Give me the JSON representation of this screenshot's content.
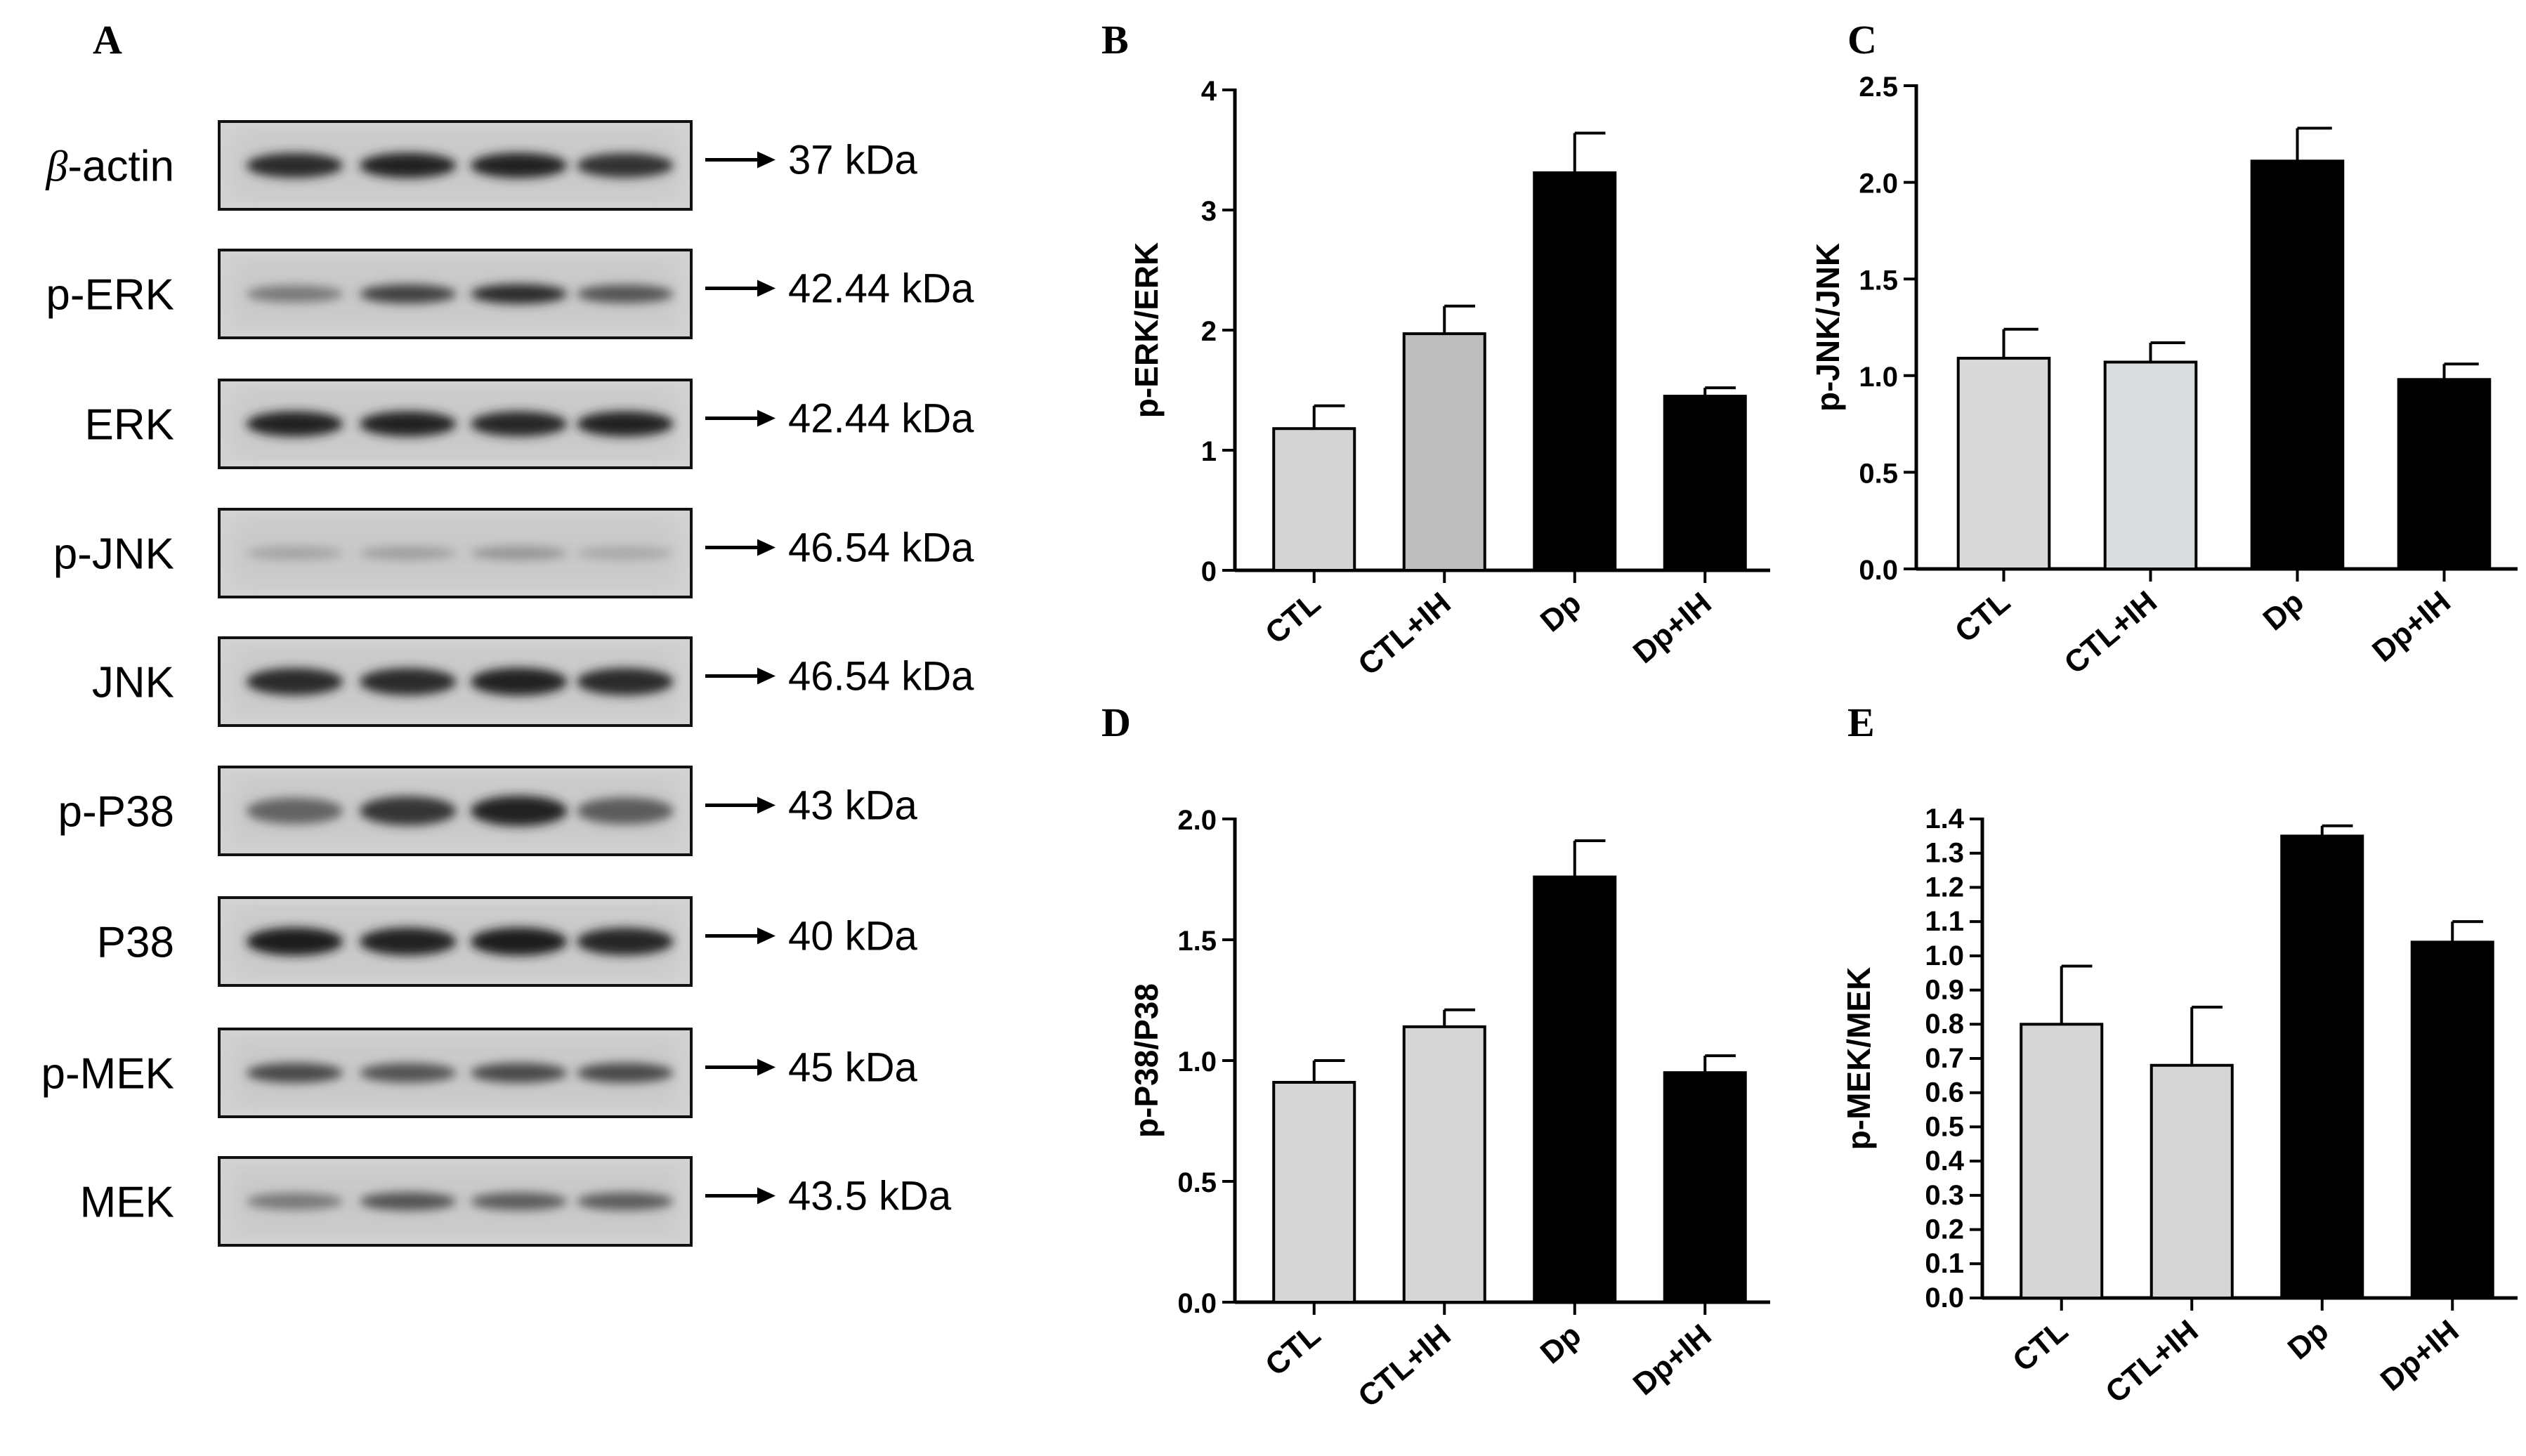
{
  "panel_a": {
    "letter": "A",
    "blots": [
      {
        "label": "β-actin",
        "label_greek": "β",
        "label_rest": "-actin",
        "kda": "37 kDa",
        "bands": [
          0.85,
          0.9,
          0.9,
          0.82
        ],
        "band_height": 1.0
      },
      {
        "label": "p-ERK",
        "kda": "42.44 kDa",
        "bands": [
          0.45,
          0.75,
          0.85,
          0.65
        ],
        "band_height": 0.8
      },
      {
        "label": "ERK",
        "kda": "42.44 kDa",
        "bands": [
          0.9,
          0.9,
          0.88,
          0.9
        ],
        "band_height": 1.0
      },
      {
        "label": "p-JNK",
        "kda": "46.54 kDa",
        "bands": [
          0.22,
          0.25,
          0.3,
          0.2
        ],
        "band_height": 0.7
      },
      {
        "label": "JNK",
        "kda": "46.54 kDa",
        "bands": [
          0.85,
          0.85,
          0.9,
          0.85
        ],
        "band_height": 1.1
      },
      {
        "label": "p-P38",
        "kda": "43 kDa",
        "bands": [
          0.55,
          0.8,
          0.9,
          0.6
        ],
        "band_height": 1.2
      },
      {
        "label": "P38",
        "kda": "40 kDa",
        "bands": [
          0.92,
          0.9,
          0.92,
          0.88
        ],
        "band_height": 1.1
      },
      {
        "label": "p-MEK",
        "kda": "45 kDa",
        "bands": [
          0.7,
          0.65,
          0.7,
          0.7
        ],
        "band_height": 0.85
      },
      {
        "label": "MEK",
        "kda": "43.5 kDa",
        "bands": [
          0.45,
          0.65,
          0.6,
          0.6
        ],
        "band_height": 0.8
      }
    ]
  },
  "chart_data": [
    {
      "panel": "B",
      "type": "bar",
      "categories": [
        "CTL",
        "CTL+IH",
        "Dp",
        "Dp+IH"
      ],
      "values": [
        1.18,
        1.97,
        3.31,
        1.45
      ],
      "errors": [
        0.19,
        0.23,
        0.33,
        0.07
      ],
      "ylabel": "p-ERK/ERK",
      "ylim": [
        0,
        4
      ],
      "ticks": [
        0,
        1,
        2,
        3,
        4
      ],
      "tick_labels": [
        "0",
        "1",
        "2",
        "3",
        "4"
      ],
      "colors": [
        "#d4d4d4",
        "#bebebe",
        "#000000",
        "#000000"
      ]
    },
    {
      "panel": "C",
      "type": "bar",
      "categories": [
        "CTL",
        "CTL+IH",
        "Dp",
        "Dp+IH"
      ],
      "values": [
        1.09,
        1.07,
        2.11,
        0.98
      ],
      "errors": [
        0.15,
        0.1,
        0.17,
        0.08
      ],
      "ylabel": "p-JNK/JNK",
      "ylim": [
        0,
        2.5
      ],
      "ticks": [
        0,
        0.5,
        1,
        1.5,
        2,
        2.5
      ],
      "tick_labels": [
        "0.0",
        "0.5",
        "1.0",
        "1.5",
        "2.0",
        "2.5"
      ],
      "colors": [
        "#d9d9d9",
        "#d9dcdc",
        "#000000",
        "#000000"
      ]
    },
    {
      "panel": "D",
      "type": "bar",
      "categories": [
        "CTL",
        "CTL+IH",
        "Dp",
        "Dp+IH"
      ],
      "values": [
        0.91,
        1.14,
        1.76,
        0.95
      ],
      "errors": [
        0.09,
        0.07,
        0.15,
        0.07
      ],
      "ylabel": "p-P38/P38",
      "ylim": [
        0,
        2
      ],
      "ticks": [
        0,
        0.5,
        1,
        1.5,
        2
      ],
      "tick_labels": [
        "0.0",
        "0.5",
        "1.0",
        "1.5",
        "2.0"
      ],
      "colors": [
        "#d6d6d6",
        "#d6d6d6",
        "#000000",
        "#000000"
      ]
    },
    {
      "panel": "E",
      "type": "bar",
      "categories": [
        "CTL",
        "CTL+IH",
        "Dp",
        "Dp+IH"
      ],
      "values": [
        0.8,
        0.68,
        1.35,
        1.04
      ],
      "errors": [
        0.17,
        0.17,
        0.03,
        0.06
      ],
      "ylabel": "p-MEK/MEK",
      "ylim": [
        0,
        1.4
      ],
      "ticks": [
        0,
        0.1,
        0.2,
        0.3,
        0.4,
        0.5,
        0.6,
        0.7,
        0.8,
        0.9,
        1,
        1.1,
        1.2,
        1.3,
        1.4
      ],
      "tick_labels": [
        "0.0",
        "0.1",
        "0.2",
        "0.3",
        "0.4",
        "0.5",
        "0.6",
        "0.7",
        "0.8",
        "0.9",
        "1.0",
        "1.1",
        "1.2",
        "1.3",
        "1.4"
      ],
      "colors": [
        "#d6d6d6",
        "#d6d6d6",
        "#000000",
        "#000000"
      ]
    }
  ]
}
